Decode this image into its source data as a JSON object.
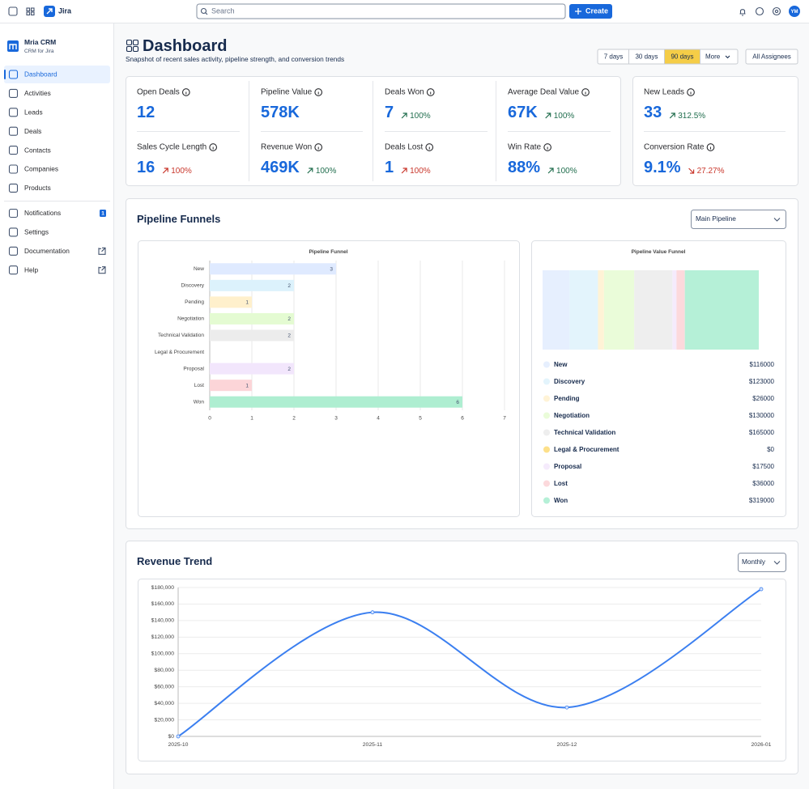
{
  "topbar": {
    "app_name": "Jira",
    "search_placeholder": "Search",
    "create_label": "Create",
    "avatar_initials": "YM"
  },
  "sidebar": {
    "brand": "Mria CRM",
    "brand_subtitle": "CRM for Jira",
    "main_nav": [
      "Dashboard",
      "Activities",
      "Leads",
      "Deals",
      "Contacts",
      "Companies",
      "Products"
    ],
    "active_index": 0,
    "secondary_nav": [
      {
        "label": "Notifications",
        "badge": 1
      },
      {
        "label": "Settings"
      },
      {
        "label": "Documentation",
        "external": true
      },
      {
        "label": "Help",
        "external": true
      }
    ]
  },
  "header": {
    "title": "Dashboard",
    "subtitle": "Snapshot of recent sales activity, pipeline strength, and conversion trends",
    "ranges": [
      "7 days",
      "30 days",
      "90 days"
    ],
    "active_range": 2,
    "more_label": "More",
    "assignee_filter": "All Assignees"
  },
  "kpi_cards": [
    {
      "columns": 4,
      "items": [
        {
          "label": "Open Deals",
          "value": "12"
        },
        {
          "label": "Pipeline Value",
          "value": "578K"
        },
        {
          "label": "Deals Won",
          "value": "7",
          "change": "100%",
          "trend": "up",
          "tone": "good"
        },
        {
          "label": "Average Deal Value",
          "value": "67K",
          "change": "100%",
          "trend": "up",
          "tone": "good"
        },
        {
          "label": "Sales Cycle Length",
          "value": "16",
          "change": "100%",
          "trend": "up",
          "tone": "bad"
        },
        {
          "label": "Revenue Won",
          "value": "469K",
          "change": "100%",
          "trend": "up",
          "tone": "good"
        },
        {
          "label": "Deals Lost",
          "value": "1",
          "change": "100%",
          "trend": "up",
          "tone": "bad"
        },
        {
          "label": "Win Rate",
          "value": "88%",
          "change": "100%",
          "trend": "up",
          "tone": "good"
        }
      ]
    },
    {
      "columns": 1,
      "items": [
        {
          "label": "New Leads",
          "value": "33",
          "change": "312.5%",
          "trend": "up",
          "tone": "good"
        },
        {
          "label": "Conversion Rate",
          "value": "9.1%",
          "change": "27.27%",
          "trend": "down",
          "tone": "bad"
        }
      ]
    }
  ],
  "pipeline_section": {
    "title": "Pipeline Funnels",
    "pipeline_select": "Main Pipeline"
  },
  "revenue_section": {
    "title": "Revenue Trend",
    "period_select": "Monthly"
  },
  "chart_data": [
    {
      "type": "bar",
      "horizontal": true,
      "title": "Pipeline Funnel",
      "categories": [
        "New",
        "Discovery",
        "Pending",
        "Negotiation",
        "Technical Validation",
        "Legal & Procurement",
        "Proposal",
        "Lost",
        "Won"
      ],
      "values": [
        3,
        2,
        1,
        2,
        2,
        0,
        2,
        1,
        6
      ],
      "colors": [
        "#dfeaff",
        "#dcf2fc",
        "#fff0cc",
        "#e4fbd2",
        "#ececec",
        "#fde4a0",
        "#f2e6fc",
        "#fcd5d8",
        "#aeeed1"
      ],
      "xlim": [
        0,
        7
      ],
      "xticks": [
        0,
        1,
        2,
        3,
        4,
        5,
        6,
        7
      ],
      "grid": true
    },
    {
      "type": "funnel",
      "title": "Pipeline Value Funnel",
      "categories": [
        "New",
        "Discovery",
        "Pending",
        "Negotiation",
        "Technical Validation",
        "Legal & Procurement",
        "Proposal",
        "Lost",
        "Won"
      ],
      "values": [
        116000,
        123000,
        26000,
        130000,
        165000,
        0,
        17500,
        36000,
        319000
      ],
      "value_labels": [
        "$116000",
        "$123000",
        "$26000",
        "$130000",
        "$165000",
        "$0",
        "$17500",
        "$36000",
        "$319000"
      ],
      "colors": [
        "#e6effe",
        "#e3f4fc",
        "#fff3d6",
        "#eafcd9",
        "#eeeeee",
        "#fde08a",
        "#f5ebfc",
        "#fcd9dc",
        "#b5f0d7"
      ]
    },
    {
      "type": "line",
      "smooth": true,
      "categories": [
        "2025-10",
        "2025-11",
        "2025-12",
        "2026-01"
      ],
      "values": [
        0,
        150000,
        35000,
        178000
      ],
      "color": "#3b7ff0",
      "ylim": [
        0,
        180000
      ],
      "yticks": [
        {
          "value": 0,
          "label": "$0"
        },
        {
          "value": 20000,
          "label": "$20,000"
        },
        {
          "value": 40000,
          "label": "$40,000"
        },
        {
          "value": 60000,
          "label": "$60,000"
        },
        {
          "value": 80000,
          "label": "$80,000"
        },
        {
          "value": 100000,
          "label": "$100,000"
        },
        {
          "value": 120000,
          "label": "$120,000"
        },
        {
          "value": 140000,
          "label": "$140,000"
        },
        {
          "value": 160000,
          "label": "$160,000"
        },
        {
          "value": 180000,
          "label": "$180,000"
        }
      ],
      "grid": true
    }
  ]
}
